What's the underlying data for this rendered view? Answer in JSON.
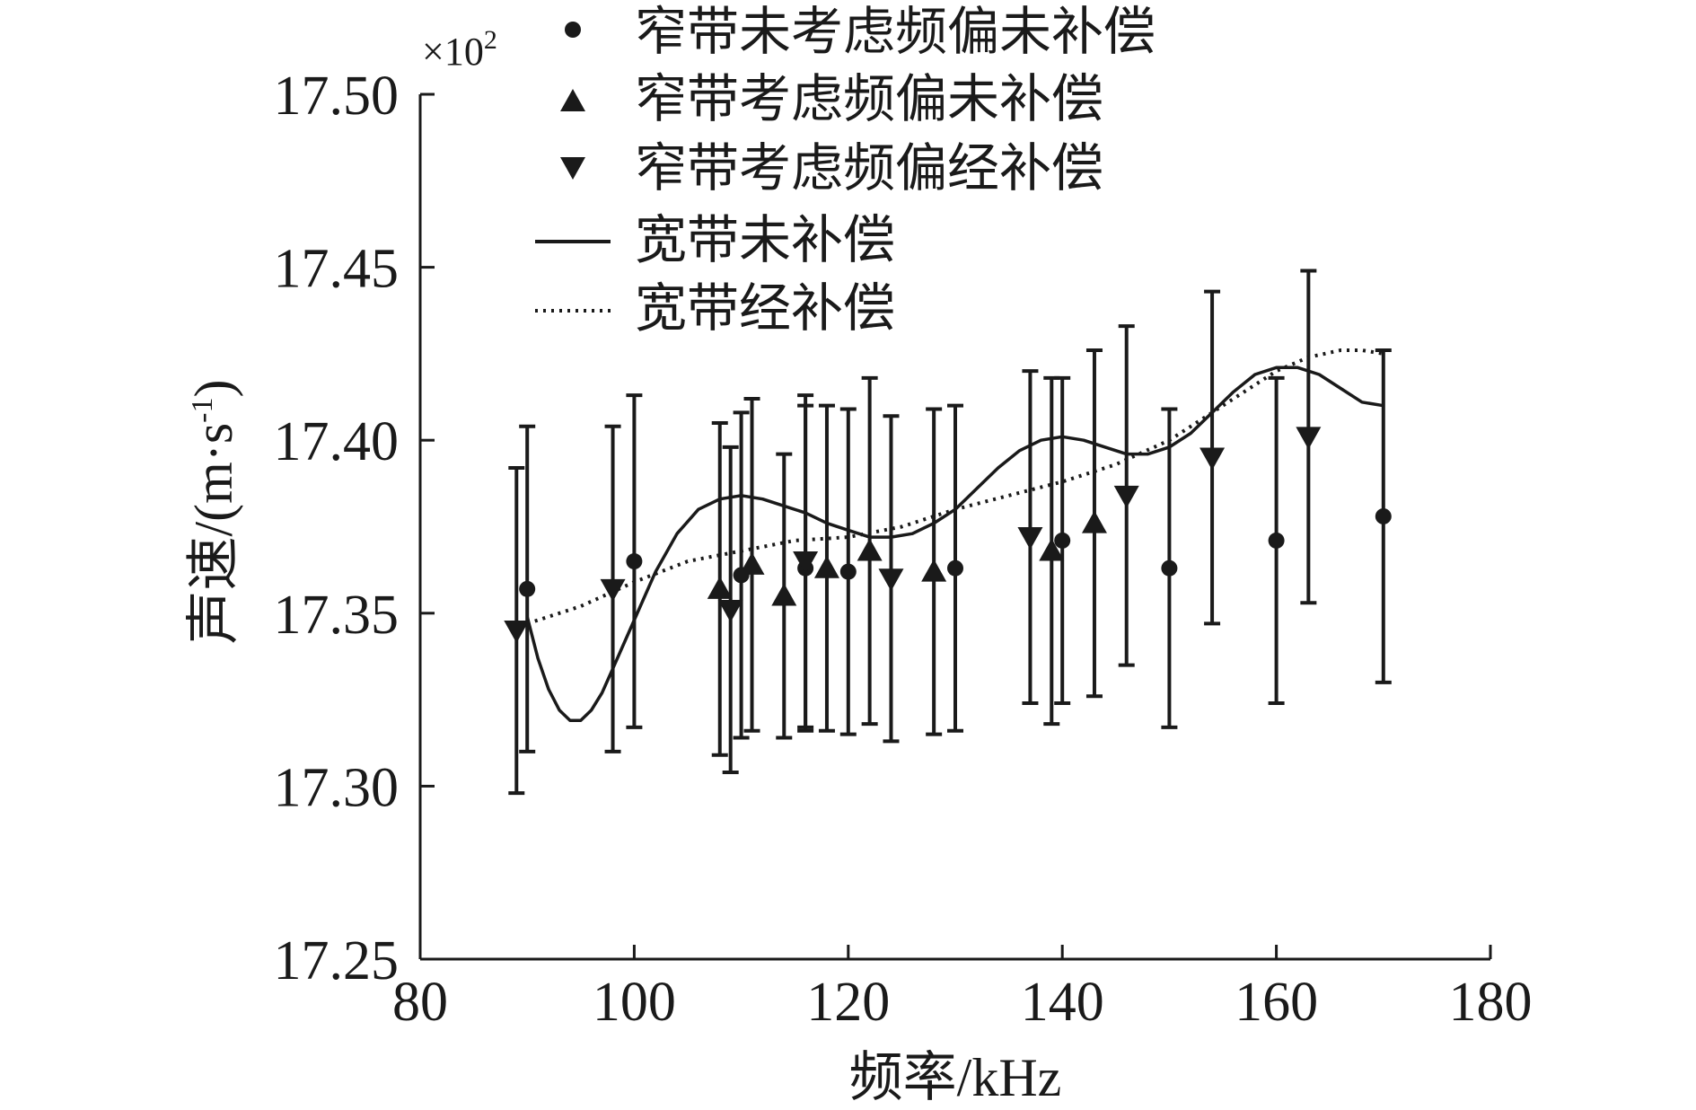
{
  "chart_data": {
    "type": "scatter",
    "xlabel": "频率/kHz",
    "ylabel": "声速/(m·s",
    "ylabel_sup": "-1",
    "ylabel_end": ")",
    "y_multiplier_base": "×10",
    "y_multiplier_exp": "2",
    "xlim": [
      80,
      180
    ],
    "ylim": [
      17.25,
      17.5
    ],
    "xticks": [
      "80",
      "100",
      "120",
      "140",
      "160",
      "180"
    ],
    "yticks": [
      "17.25",
      "17.30",
      "17.35",
      "17.40",
      "17.45",
      "17.50"
    ],
    "legend_position": "top-left",
    "series": [
      {
        "name": "窄带未考虑频偏未补偿",
        "marker": "circle",
        "points": [
          {
            "x": 90,
            "y": 17.357,
            "err": 0.047
          },
          {
            "x": 100,
            "y": 17.365,
            "err": 0.048
          },
          {
            "x": 110,
            "y": 17.361,
            "err": 0.047
          },
          {
            "x": 116,
            "y": 17.363,
            "err": 0.047
          },
          {
            "x": 120,
            "y": 17.362,
            "err": 0.047
          },
          {
            "x": 130,
            "y": 17.363,
            "err": 0.047
          },
          {
            "x": 140,
            "y": 17.371,
            "err": 0.047
          },
          {
            "x": 150,
            "y": 17.363,
            "err": 0.046
          },
          {
            "x": 160,
            "y": 17.371,
            "err": 0.047
          },
          {
            "x": 170,
            "y": 17.378,
            "err": 0.048
          }
        ]
      },
      {
        "name": "窄带考虑频偏未补偿",
        "marker": "triangle-up",
        "points": [
          {
            "x": 108,
            "y": 17.357,
            "err": 0.048
          },
          {
            "x": 111,
            "y": 17.364,
            "err": 0.048
          },
          {
            "x": 114,
            "y": 17.355,
            "err": 0.041
          },
          {
            "x": 118,
            "y": 17.363,
            "err": 0.047
          },
          {
            "x": 122,
            "y": 17.368,
            "err": 0.05
          },
          {
            "x": 128,
            "y": 17.362,
            "err": 0.047
          },
          {
            "x": 139,
            "y": 17.368,
            "err": 0.05
          },
          {
            "x": 143,
            "y": 17.376,
            "err": 0.05
          }
        ]
      },
      {
        "name": "窄带考虑频偏经补偿",
        "marker": "triangle-down",
        "points": [
          {
            "x": 89,
            "y": 17.345,
            "err": 0.047
          },
          {
            "x": 98,
            "y": 17.357,
            "err": 0.047
          },
          {
            "x": 109,
            "y": 17.351,
            "err": 0.047
          },
          {
            "x": 116,
            "y": 17.365,
            "err": 0.048
          },
          {
            "x": 124,
            "y": 17.36,
            "err": 0.047
          },
          {
            "x": 137,
            "y": 17.372,
            "err": 0.048
          },
          {
            "x": 146,
            "y": 17.384,
            "err": 0.049
          },
          {
            "x": 154,
            "y": 17.395,
            "err": 0.048
          },
          {
            "x": 163,
            "y": 17.401,
            "err": 0.048
          }
        ]
      },
      {
        "name": "宽带未补偿",
        "line": "solid",
        "x": [
          90,
          91,
          92,
          93,
          94,
          95,
          96,
          97,
          98,
          99,
          100,
          102,
          104,
          106,
          108,
          110,
          112,
          114,
          116,
          118,
          120,
          122,
          124,
          126,
          128,
          130,
          132,
          134,
          136,
          138,
          140,
          142,
          144,
          146,
          148,
          150,
          152,
          154,
          156,
          158,
          160,
          162,
          164,
          166,
          168,
          170
        ],
        "y": [
          17.349,
          17.337,
          17.328,
          17.322,
          17.319,
          17.319,
          17.322,
          17.327,
          17.334,
          17.341,
          17.348,
          17.362,
          17.373,
          17.38,
          17.383,
          17.384,
          17.383,
          17.381,
          17.379,
          17.376,
          17.374,
          17.372,
          17.372,
          17.373,
          17.376,
          17.38,
          17.386,
          17.392,
          17.397,
          17.4,
          17.401,
          17.4,
          17.398,
          17.396,
          17.396,
          17.398,
          17.402,
          17.408,
          17.414,
          17.419,
          17.421,
          17.421,
          17.419,
          17.415,
          17.411,
          17.41
        ]
      },
      {
        "name": "宽带经补偿",
        "line": "dotted",
        "x": [
          90,
          95,
          100,
          105,
          110,
          115,
          120,
          125,
          130,
          135,
          140,
          145,
          150,
          155,
          160,
          163,
          166,
          168,
          170
        ],
        "y": [
          17.347,
          17.352,
          17.359,
          17.365,
          17.368,
          17.371,
          17.372,
          17.375,
          17.38,
          17.384,
          17.388,
          17.393,
          17.4,
          17.41,
          17.42,
          17.424,
          17.426,
          17.426,
          17.425
        ]
      }
    ]
  }
}
